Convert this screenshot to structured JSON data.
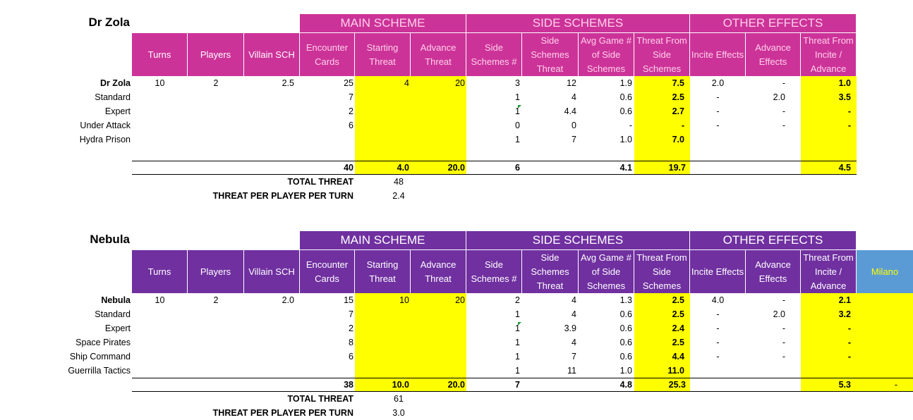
{
  "headers": {
    "main_scheme": "MAIN SCHEME",
    "side_schemes": "SIDE SCHEMES",
    "other_effects": "OTHER EFFECTS",
    "turns": "Turns",
    "players": "Players",
    "villain_sch": "Villain SCH",
    "encounter_cards": "Encounter Cards",
    "starting_threat": "Starting Threat",
    "advance_threat": "Advance Threat",
    "side_schemes_num": "Side Schemes #",
    "side_schemes_threat": "Side Schemes Threat",
    "avg_game_num": "Avg Game # of Side Schemes",
    "threat_from_side": "Threat From Side Schemes",
    "incite_effects": "Incite Effects",
    "advance_effects": "Advance Effects",
    "threat_from_incite": "Threat From Incite / Advance"
  },
  "colors": {
    "zola_header": "#cc3399",
    "zola_header_text": "#ffd0ea",
    "nebula_header": "#7030a0",
    "nebula_header_text": "#ffffff",
    "highlight": "#ffff00",
    "milano_header": "#5b9bd5",
    "milano_text": "#ffff00"
  },
  "tables": [
    {
      "villain": "Dr Zola",
      "extra_header": "",
      "rows": [
        {
          "name": "Dr Zola",
          "bold": true,
          "turns": "10",
          "players": "2",
          "sch": "2.5",
          "enc": "25",
          "start": "4",
          "adv": "20",
          "side_n": "3",
          "side_t": "12",
          "avg": "1.9",
          "tfs": "7.5",
          "incite": "2.0",
          "adve": "-",
          "tfi": "1.0",
          "note": false
        },
        {
          "name": "Standard",
          "bold": false,
          "turns": "",
          "players": "",
          "sch": "",
          "enc": "7",
          "start": "",
          "adv": "",
          "side_n": "1",
          "side_t": "4",
          "avg": "0.6",
          "tfs": "2.5",
          "incite": "-",
          "adve": "2.0",
          "tfi": "3.5",
          "note": false
        },
        {
          "name": "Expert",
          "bold": false,
          "turns": "",
          "players": "",
          "sch": "",
          "enc": "2",
          "start": "",
          "adv": "",
          "side_n": "1",
          "side_t": "4.4",
          "avg": "0.6",
          "tfs": "2.7",
          "incite": "-",
          "adve": "-",
          "tfi": "-",
          "note": true
        },
        {
          "name": "Under Attack",
          "bold": false,
          "turns": "",
          "players": "",
          "sch": "",
          "enc": "6",
          "start": "",
          "adv": "",
          "side_n": "0",
          "side_t": "0",
          "avg": "-",
          "tfs": "-",
          "incite": "-",
          "adve": "-",
          "tfi": "-",
          "note": false
        },
        {
          "name": "Hydra Prison",
          "bold": false,
          "turns": "",
          "players": "",
          "sch": "",
          "enc": "",
          "start": "",
          "adv": "",
          "side_n": "1",
          "side_t": "7",
          "avg": "1.0",
          "tfs": "7.0",
          "incite": "",
          "adve": "",
          "tfi": "",
          "note": false
        }
      ],
      "totals": {
        "enc": "40",
        "start": "4.0",
        "adv": "20.0",
        "side_n": "6",
        "avg": "4.1",
        "tfs": "19.7",
        "tfi": "4.5",
        "extra": ""
      },
      "total_threat_label": "TOTAL THREAT",
      "total_threat": "48",
      "tpp_label": "THREAT PER PLAYER PER TURN",
      "tpp": "2.4"
    },
    {
      "villain": "Nebula",
      "extra_header": "Milano",
      "rows": [
        {
          "name": "Nebula",
          "bold": true,
          "turns": "10",
          "players": "2",
          "sch": "2.0",
          "enc": "15",
          "start": "10",
          "adv": "20",
          "side_n": "2",
          "side_t": "4",
          "avg": "1.3",
          "tfs": "2.5",
          "incite": "4.0",
          "adve": "-",
          "tfi": "2.1",
          "note": false
        },
        {
          "name": "Standard",
          "bold": false,
          "turns": "",
          "players": "",
          "sch": "",
          "enc": "7",
          "start": "",
          "adv": "",
          "side_n": "1",
          "side_t": "4",
          "avg": "0.6",
          "tfs": "2.5",
          "incite": "-",
          "adve": "2.0",
          "tfi": "3.2",
          "note": false
        },
        {
          "name": "Expert",
          "bold": false,
          "turns": "",
          "players": "",
          "sch": "",
          "enc": "2",
          "start": "",
          "adv": "",
          "side_n": "1",
          "side_t": "3.9",
          "avg": "0.6",
          "tfs": "2.4",
          "incite": "-",
          "adve": "-",
          "tfi": "-",
          "note": true
        },
        {
          "name": "Space Pirates",
          "bold": false,
          "turns": "",
          "players": "",
          "sch": "",
          "enc": "8",
          "start": "",
          "adv": "",
          "side_n": "1",
          "side_t": "4",
          "avg": "0.6",
          "tfs": "2.5",
          "incite": "-",
          "adve": "-",
          "tfi": "-",
          "note": false
        },
        {
          "name": "Ship Command",
          "bold": false,
          "turns": "",
          "players": "",
          "sch": "",
          "enc": "6",
          "start": "",
          "adv": "",
          "side_n": "1",
          "side_t": "7",
          "avg": "0.6",
          "tfs": "4.4",
          "incite": "-",
          "adve": "-",
          "tfi": "-",
          "note": false
        },
        {
          "name": "Guerrilla Tactics",
          "bold": false,
          "turns": "",
          "players": "",
          "sch": "",
          "enc": "",
          "start": "",
          "adv": "",
          "side_n": "1",
          "side_t": "11",
          "avg": "1.0",
          "tfs": "11.0",
          "incite": "",
          "adve": "",
          "tfi": "",
          "note": false
        }
      ],
      "totals": {
        "enc": "38",
        "start": "10.0",
        "adv": "20.0",
        "side_n": "7",
        "avg": "4.8",
        "tfs": "25.3",
        "tfi": "5.3",
        "extra": "-"
      },
      "total_threat_label": "TOTAL THREAT",
      "total_threat": "61",
      "tpp_label": "THREAT PER PLAYER PER TURN",
      "tpp": "3.0"
    }
  ]
}
